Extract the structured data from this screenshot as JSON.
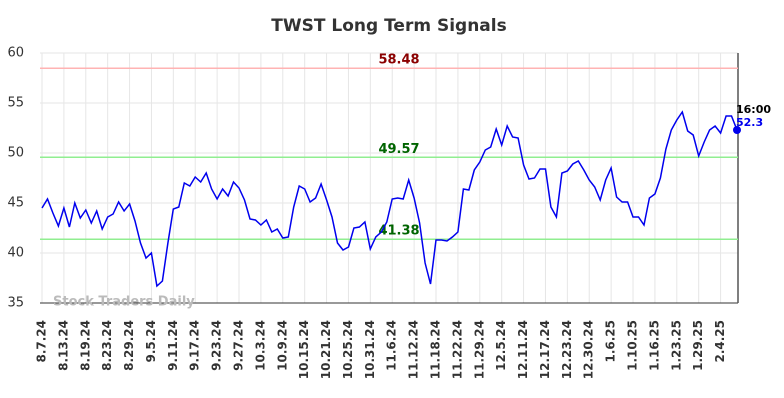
{
  "chart_data": {
    "type": "line",
    "title": "TWST Long Term Signals",
    "watermark": "Stock Traders Daily",
    "categories": [
      "8.7.24",
      null,
      null,
      null,
      "8.13.24",
      null,
      null,
      null,
      "8.19.24",
      null,
      null,
      null,
      "8.23.24",
      null,
      null,
      null,
      "8.29.24",
      null,
      null,
      null,
      "9.5.24",
      null,
      null,
      null,
      "9.11.24",
      null,
      null,
      null,
      "9.17.24",
      null,
      null,
      null,
      "9.23.24",
      null,
      null,
      null,
      "9.27.24",
      null,
      null,
      null,
      "10.3.24",
      null,
      null,
      null,
      "10.9.24",
      null,
      null,
      null,
      "10.15.24",
      null,
      null,
      null,
      "10.21.24",
      null,
      null,
      null,
      "10.25.24",
      null,
      null,
      null,
      "10.31.24",
      null,
      null,
      null,
      "11.6.24",
      null,
      null,
      null,
      "11.12.24",
      null,
      null,
      null,
      "11.18.24",
      null,
      null,
      null,
      "11.22.24",
      null,
      null,
      null,
      "11.29.24",
      null,
      null,
      null,
      "12.5.24",
      null,
      null,
      null,
      "12.11.24",
      null,
      null,
      null,
      "12.17.24",
      null,
      null,
      null,
      "12.23.24",
      null,
      null,
      null,
      "12.30.24",
      null,
      null,
      null,
      "1.6.25",
      null,
      null,
      null,
      "1.10.25",
      null,
      null,
      null,
      "1.16.25",
      null,
      null,
      null,
      "1.23.25",
      null,
      null,
      null,
      "1.29.25",
      null,
      null,
      null,
      "2.4.25",
      null,
      null,
      null
    ],
    "series": [
      {
        "color": "#0000ee",
        "values": [
          44.5,
          45.4,
          44,
          42.7,
          44.5,
          42.6,
          45,
          43.5,
          44.3,
          43,
          44.2,
          42.4,
          43.6,
          43.9,
          45.1,
          44.2,
          44.9,
          43.2,
          41,
          39.5,
          40,
          36.7,
          37.2,
          41,
          44.4,
          44.6,
          47,
          46.7,
          47.6,
          47.1,
          48,
          46.4,
          45.4,
          46.4,
          45.7,
          47.1,
          46.5,
          45.3,
          43.4,
          43.3,
          42.8,
          43.3,
          42.1,
          42.4,
          41.5,
          41.6,
          44.6,
          46.7,
          46.4,
          45.1,
          45.5,
          46.9,
          45.3,
          43.6,
          41,
          40.3,
          40.6,
          42.5,
          42.6,
          43.1,
          40.4,
          41.6,
          42.1,
          43.1,
          45.4,
          45.5,
          45.4,
          47.3,
          45.5,
          43,
          39,
          36.9,
          41.3,
          41.3,
          41.2,
          41.6,
          42.1,
          46.4,
          46.3,
          48.3,
          49.1,
          50.3,
          50.6,
          52.4,
          50.8,
          52.7,
          51.6,
          51.5,
          48.8,
          47.4,
          47.5,
          48.4,
          48.4,
          44.6,
          43.6,
          48,
          48.2,
          48.9,
          49.2,
          48.3,
          47.3,
          46.6,
          45.3,
          47.3,
          48.5,
          45.6,
          45.1,
          45.1,
          43.6,
          43.6,
          42.8,
          45.5,
          45.9,
          47.5,
          50.4,
          52.3,
          53.3,
          54.1,
          52.2,
          51.8,
          49.7,
          51.1,
          52.3,
          52.7,
          52,
          53.7,
          53.7,
          52.3
        ]
      }
    ],
    "last_time_label": "16:00",
    "hlines": [
      {
        "value": 58.48,
        "color": "#ffb3b3",
        "label_color": "#8b0000"
      },
      {
        "value": 49.57,
        "color": "#90ee90",
        "label_color": "#006400"
      },
      {
        "value": 41.38,
        "color": "#90ee90",
        "label_color": "#006400"
      }
    ],
    "ylim": [
      35,
      60
    ],
    "yticks": [
      35,
      40,
      45,
      50,
      55,
      60
    ],
    "grid": true
  }
}
